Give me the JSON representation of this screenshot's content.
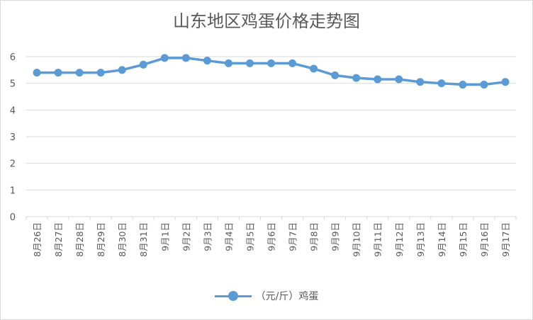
{
  "colors": {
    "series": "#5b9bd5",
    "grid": "#d9d9d9",
    "text": "#595959"
  },
  "chart_data": {
    "type": "line",
    "title": "山东地区鸡蛋价格走势图",
    "xlabel": "",
    "ylabel": "",
    "ylim": [
      0,
      6
    ],
    "yticks": [
      "0",
      "1",
      "2",
      "3",
      "4",
      "5",
      "6"
    ],
    "grid": true,
    "legend_position": "bottom",
    "categories": [
      "8月26日",
      "8月27日",
      "8月28日",
      "8月29日",
      "8月30日",
      "8月31日",
      "9月1日",
      "9月2日",
      "9月3日",
      "9月4日",
      "9月5日",
      "9月6日",
      "9月7日",
      "9月8日",
      "9月9日",
      "9月10日",
      "9月11日",
      "9月12日",
      "9月13日",
      "9月14日",
      "9月15日",
      "9月16日",
      "9月17日"
    ],
    "series": [
      {
        "name": "（元/斤）鸡蛋",
        "values": [
          5.4,
          5.4,
          5.4,
          5.4,
          5.5,
          5.7,
          5.95,
          5.95,
          5.85,
          5.75,
          5.75,
          5.75,
          5.75,
          5.55,
          5.3,
          5.2,
          5.15,
          5.15,
          5.05,
          5.0,
          4.95,
          4.95,
          5.05
        ]
      }
    ]
  }
}
